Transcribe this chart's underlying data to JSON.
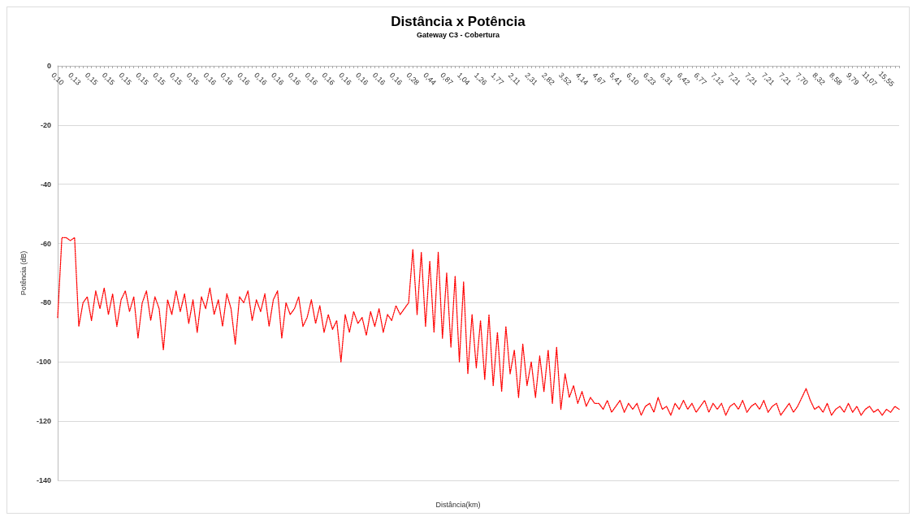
{
  "chart_data": {
    "type": "line",
    "title": "Distância x Potência",
    "subtitle": "Gateway C3 - Cobertura",
    "xlabel": "Distância(km)",
    "ylabel": "Potência (dB)",
    "categories": [
      "0,10",
      null,
      null,
      null,
      "0,13",
      null,
      null,
      null,
      "0,15",
      null,
      null,
      null,
      "0,15",
      null,
      null,
      null,
      "0,15",
      null,
      null,
      null,
      "0,15",
      null,
      null,
      null,
      "0,15",
      null,
      null,
      null,
      "0,15",
      null,
      null,
      null,
      "0,15",
      null,
      null,
      null,
      "0,16",
      null,
      null,
      null,
      "0,16",
      null,
      null,
      null,
      "0,16",
      null,
      null,
      null,
      "0,16",
      null,
      null,
      null,
      "0,16",
      null,
      null,
      null,
      "0,16",
      null,
      null,
      null,
      "0,16",
      null,
      null,
      null,
      "0,16",
      null,
      null,
      null,
      "0,16",
      null,
      null,
      null,
      "0,16",
      null,
      null,
      null,
      "0,16",
      null,
      null,
      null,
      "0,16",
      null,
      null,
      null,
      "0,28",
      null,
      null,
      null,
      "0,44",
      null,
      null,
      null,
      "0,87",
      null,
      null,
      null,
      "1,04",
      null,
      null,
      null,
      "1,26",
      null,
      null,
      null,
      "1,77",
      null,
      null,
      null,
      "2,11",
      null,
      null,
      null,
      "2,31",
      null,
      null,
      null,
      "2,82",
      null,
      null,
      null,
      "3,52",
      null,
      null,
      null,
      "4,14",
      null,
      null,
      null,
      "4,67",
      null,
      null,
      null,
      "5,41",
      null,
      null,
      null,
      "6,10",
      null,
      null,
      null,
      "6,23",
      null,
      null,
      null,
      "6,31",
      null,
      null,
      null,
      "6,42",
      null,
      null,
      null,
      "6,77",
      null,
      null,
      null,
      "7,12",
      null,
      null,
      null,
      "7,21",
      null,
      null,
      null,
      "7,21",
      null,
      null,
      null,
      "7,21",
      null,
      null,
      null,
      "7,21",
      null,
      null,
      null,
      "7,70",
      null,
      null,
      null,
      "8,32",
      null,
      null,
      null,
      "8,58",
      null,
      null,
      null,
      "9,79",
      null,
      null,
      null,
      "11,07",
      null,
      null,
      null,
      "15,55",
      null,
      null,
      null
    ],
    "series": [
      {
        "color": "#ff0000",
        "values": [
          -85,
          -58,
          -58,
          -59,
          -58,
          -88,
          -80,
          -78,
          -86,
          -76,
          -82,
          -75,
          -84,
          -77,
          -88,
          -79,
          -76,
          -83,
          -78,
          -92,
          -80,
          -76,
          -86,
          -78,
          -82,
          -96,
          -79,
          -84,
          -76,
          -83,
          -77,
          -87,
          -79,
          -90,
          -78,
          -82,
          -75,
          -84,
          -79,
          -88,
          -77,
          -82,
          -94,
          -78,
          -80,
          -76,
          -86,
          -79,
          -83,
          -77,
          -88,
          -79,
          -76,
          -92,
          -80,
          -84,
          -82,
          -78,
          -88,
          -85,
          -79,
          -87,
          -81,
          -90,
          -84,
          -89,
          -86,
          -100,
          -84,
          -90,
          -83,
          -87,
          -85,
          -91,
          -83,
          -88,
          -82,
          -90,
          -84,
          -86,
          -81,
          -84,
          -82,
          -80,
          -62,
          -84,
          -63,
          -88,
          -66,
          -90,
          -63,
          -92,
          -70,
          -95,
          -71,
          -100,
          -73,
          -104,
          -84,
          -102,
          -86,
          -106,
          -84,
          -108,
          -90,
          -110,
          -88,
          -104,
          -96,
          -112,
          -94,
          -108,
          -100,
          -112,
          -98,
          -110,
          -96,
          -114,
          -95,
          -116,
          -104,
          -112,
          -108,
          -114,
          -110,
          -115,
          -112,
          -114,
          -114,
          -116,
          -113,
          -117,
          -115,
          -113,
          -117,
          -114,
          -116,
          -114,
          -118,
          -115,
          -114,
          -117,
          -112,
          -116,
          -115,
          -118,
          -114,
          -116,
          -113,
          -116,
          -114,
          -117,
          -115,
          -113,
          -117,
          -114,
          -116,
          -114,
          -118,
          -115,
          -114,
          -116,
          -113,
          -117,
          -115,
          -114,
          -116,
          -113,
          -117,
          -115,
          -114,
          -118,
          -116,
          -114,
          -117,
          -115,
          -112,
          -109,
          -113,
          -116,
          -115,
          -117,
          -114,
          -118,
          -116,
          -115,
          -117,
          -114,
          -117,
          -115,
          -118,
          -116,
          -115,
          -117,
          -116,
          -118,
          -116,
          -117,
          -115,
          -116
        ]
      }
    ],
    "ylim": [
      -140,
      0
    ],
    "yticks": [
      -140,
      -120,
      -100,
      -80,
      -60,
      -40,
      -20,
      0
    ],
    "grid": "y",
    "marker": "none",
    "line_style": "dotted"
  }
}
